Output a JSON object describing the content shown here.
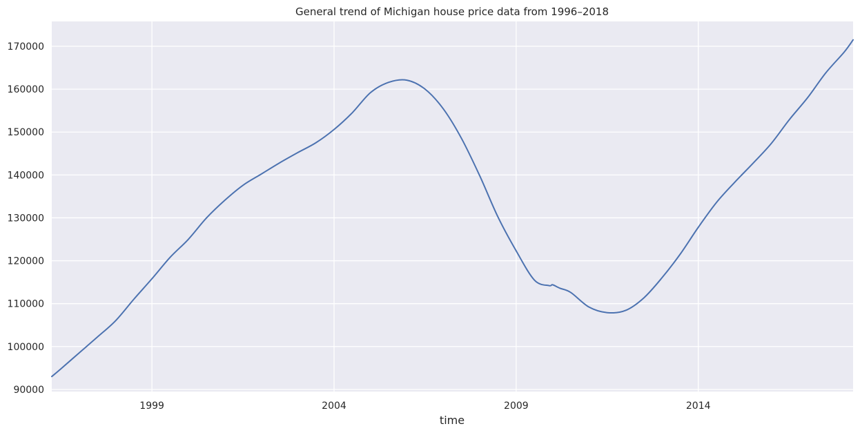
{
  "chart_data": {
    "type": "line",
    "title": "General trend of Michigan house price data from 1996–2018",
    "xlabel": "time",
    "ylabel": "",
    "x_unit": "year",
    "xlim": [
      1996.25,
      2018.25
    ],
    "ylim": [
      89500,
      175800
    ],
    "x_ticks": [
      {
        "value": 1999,
        "label": "1999"
      },
      {
        "value": 2004,
        "label": "2004"
      },
      {
        "value": 2009,
        "label": "2009"
      },
      {
        "value": 2014,
        "label": "2014"
      }
    ],
    "y_ticks": [
      {
        "value": 90000,
        "label": "90000"
      },
      {
        "value": 100000,
        "label": "100000"
      },
      {
        "value": 110000,
        "label": "110000"
      },
      {
        "value": 120000,
        "label": "120000"
      },
      {
        "value": 130000,
        "label": "130000"
      },
      {
        "value": 140000,
        "label": "140000"
      },
      {
        "value": 150000,
        "label": "150000"
      },
      {
        "value": 160000,
        "label": "160000"
      },
      {
        "value": 170000,
        "label": "170000"
      }
    ],
    "grid": true,
    "colors": {
      "background": "#eaeaf2",
      "grid": "#ffffff",
      "line": "#4c72b0"
    },
    "series": [
      {
        "x": [
          1996.25,
          1996.5,
          1997.0,
          1997.5,
          1998.0,
          1998.5,
          1999.0,
          1999.5,
          2000.0,
          2000.5,
          2001.0,
          2001.5,
          2002.0,
          2002.5,
          2003.0,
          2003.5,
          2004.0,
          2004.5,
          2005.0,
          2005.5,
          2006.0,
          2006.5,
          2007.0,
          2007.5,
          2008.0,
          2008.5,
          2009.0,
          2009.5,
          2009.9,
          2010.0,
          2010.2,
          2010.5,
          2011.0,
          2011.5,
          2012.0,
          2012.5,
          2013.0,
          2013.5,
          2014.0,
          2014.5,
          2015.0,
          2015.5,
          2016.0,
          2016.5,
          2017.0,
          2017.5,
          2018.0,
          2018.25
        ],
        "y": [
          93000,
          94800,
          98500,
          102200,
          106000,
          111000,
          115800,
          120800,
          125000,
          130000,
          134100,
          137600,
          140200,
          142800,
          145200,
          147500,
          150600,
          154500,
          159200,
          161600,
          162100,
          160000,
          155400,
          148500,
          139800,
          130200,
          122300,
          115500,
          114200,
          114400,
          113600,
          112600,
          109200,
          107900,
          108400,
          111300,
          116000,
          121500,
          127800,
          133600,
          138300,
          142700,
          147300,
          152900,
          158000,
          163800,
          168600,
          171500
        ]
      }
    ]
  }
}
